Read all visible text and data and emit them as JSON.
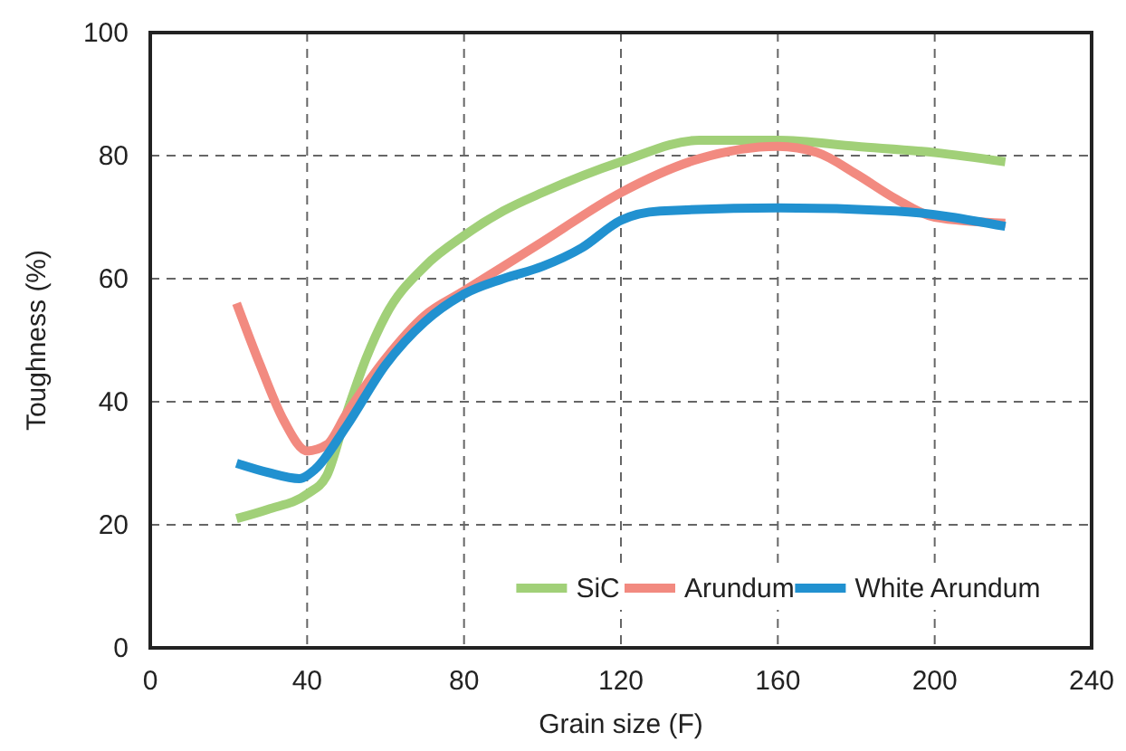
{
  "chart_data": {
    "type": "line",
    "xlabel": "Grain size (F)",
    "ylabel": "Toughness (%)",
    "xlim": [
      0,
      240
    ],
    "xticks": [
      0,
      40,
      80,
      120,
      160,
      200,
      240
    ],
    "ylim": [
      0,
      100
    ],
    "yticks": [
      0,
      20,
      40,
      60,
      80,
      100
    ],
    "grid": true,
    "legend": "bottom right",
    "line_style": "solid",
    "marker": "none",
    "series": [
      {
        "name": "SiC",
        "color": "#a1d078",
        "x": [
          22,
          30,
          40,
          45,
          50,
          55,
          60,
          70,
          80,
          90,
          100,
          120,
          140,
          160,
          180,
          200,
          218
        ],
        "values": [
          21,
          22.5,
          25,
          28,
          38,
          47,
          54,
          62,
          67,
          71,
          74,
          79,
          82.5,
          82.5,
          81.5,
          80.5,
          79
        ]
      },
      {
        "name": "Arundum",
        "color": "#f28a80",
        "x": [
          22,
          28,
          34,
          40,
          45,
          50,
          60,
          70,
          80,
          100,
          120,
          140,
          160,
          170,
          180,
          190,
          200,
          218
        ],
        "values": [
          56,
          46,
          37,
          32,
          33,
          38,
          47,
          54,
          58,
          66,
          74,
          79.5,
          81.5,
          80.5,
          77,
          73,
          70,
          69
        ]
      },
      {
        "name": "White Arundum",
        "color": "#2191d0",
        "x": [
          22,
          30,
          38,
          42,
          50,
          60,
          70,
          80,
          90,
          100,
          110,
          120,
          130,
          160,
          190,
          218
        ],
        "values": [
          30,
          28.5,
          27.5,
          29,
          36,
          46,
          53,
          57.5,
          60,
          62,
          65,
          69.5,
          71,
          71.5,
          71,
          68.5
        ]
      }
    ]
  }
}
